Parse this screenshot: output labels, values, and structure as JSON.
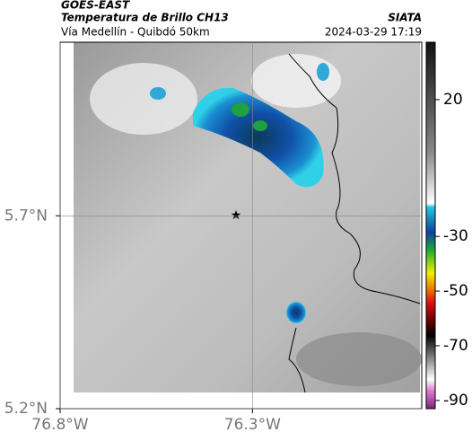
{
  "header": {
    "title": "GOES-EAST",
    "subtitle": "Temperatura de Brillo CH13",
    "source": "SIATA",
    "route": "Vía Medellín - Quibdó 50km",
    "timestamp": "2024-03-29 17:19"
  },
  "map": {
    "xlim": [
      -76.8,
      -75.86
    ],
    "ylim": [
      5.2,
      6.15
    ],
    "xticks": [
      {
        "value": -76.8,
        "label": "76.8°W"
      },
      {
        "value": -76.3,
        "label": "76.3°W"
      }
    ],
    "yticks": [
      {
        "value": 5.7,
        "label": "5.7°N"
      },
      {
        "value": 5.2,
        "label": "5.2°N"
      }
    ]
  },
  "colorbar": {
    "lim": [
      -93,
      41
    ],
    "ticks": [
      20,
      -30,
      -50,
      -70,
      -90
    ]
  }
}
